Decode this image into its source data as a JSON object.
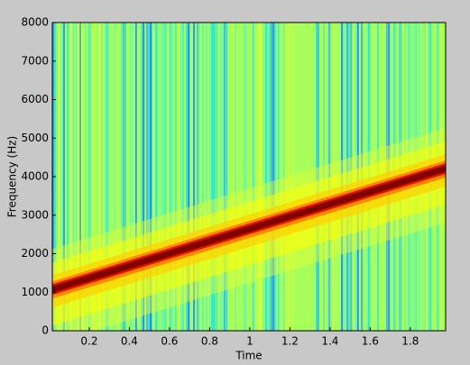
{
  "chart_data": {
    "type": "spectrogram",
    "xlabel": "Time",
    "ylabel": "Frequency (Hz)",
    "x": [
      0.016,
      1.976
    ],
    "values": [
      1070,
      4210
    ],
    "xlim": [
      0.016,
      1.976
    ],
    "xticks": [
      0.2,
      0.4,
      0.6,
      0.8,
      1,
      1.2,
      1.4,
      1.6,
      1.8
    ],
    "ylim": [
      0,
      8000
    ],
    "yticks": [
      0,
      1000,
      2000,
      3000,
      4000,
      5000,
      6000,
      7000,
      8000
    ],
    "color": "#800000"
  }
}
